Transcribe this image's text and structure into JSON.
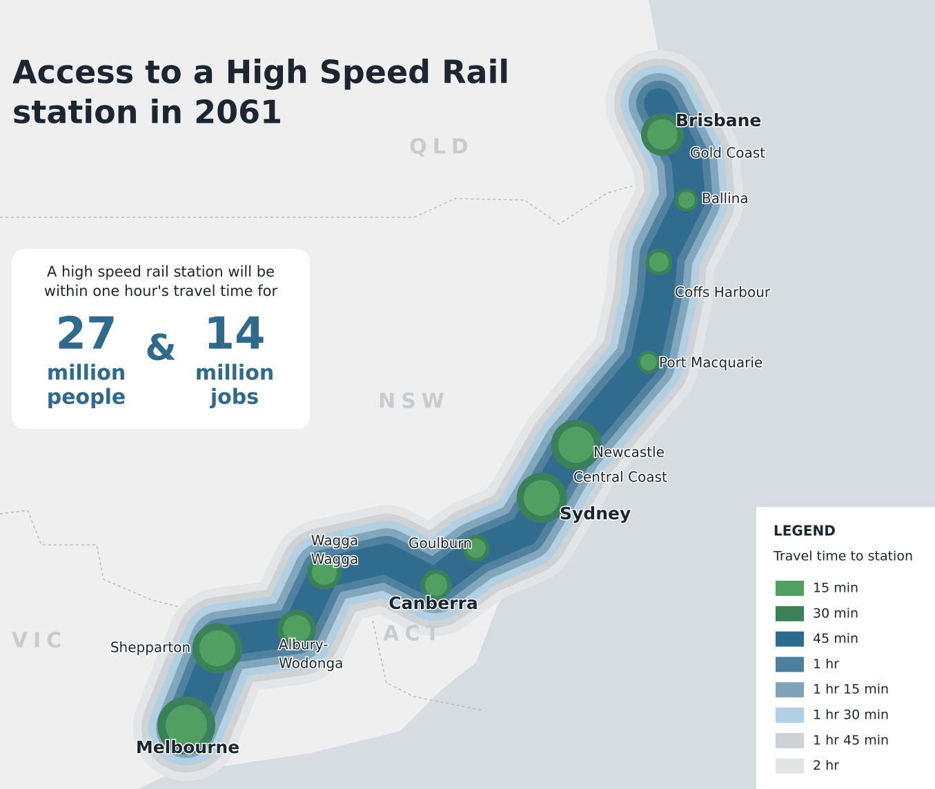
{
  "title": [
    "Access to a High Speed Rail",
    "station in 2061"
  ],
  "callout": {
    "intro": [
      "A high speed rail station will be",
      "within one hour's travel time for"
    ],
    "joiner": "&",
    "stats": [
      {
        "value": 27,
        "unit": "million",
        "label": "people"
      },
      {
        "value": 14,
        "unit": "million",
        "label": "jobs"
      }
    ]
  },
  "states": [
    "QLD",
    "NSW",
    "ACT",
    "VIC"
  ],
  "cities": [
    {
      "lines": [
        "Brisbane"
      ],
      "major": true
    },
    {
      "lines": [
        "Gold Coast"
      ],
      "major": false
    },
    {
      "lines": [
        "Ballina"
      ],
      "major": false
    },
    {
      "lines": [
        "Coffs Harbour"
      ],
      "major": false
    },
    {
      "lines": [
        "Port Macquarie"
      ],
      "major": false
    },
    {
      "lines": [
        "Newcastle"
      ],
      "major": false
    },
    {
      "lines": [
        "Central Coast"
      ],
      "major": false
    },
    {
      "lines": [
        "Sydney"
      ],
      "major": true
    },
    {
      "lines": [
        "Goulburn"
      ],
      "major": false
    },
    {
      "lines": [
        "Canberra"
      ],
      "major": true
    },
    {
      "lines": [
        "Wagga",
        "Wagga"
      ],
      "major": false
    },
    {
      "lines": [
        "Albury-",
        "Wodonga"
      ],
      "major": false
    },
    {
      "lines": [
        "Shepparton"
      ],
      "major": false
    },
    {
      "lines": [
        "Melbourne"
      ],
      "major": true
    }
  ],
  "legend": {
    "title": "LEGEND",
    "subtitle": "Travel time to station",
    "items": [
      {
        "label": "15 min",
        "color": "#52a061"
      },
      {
        "label": "30 min",
        "color": "#3a8058"
      },
      {
        "label": "45 min",
        "color": "#2e6a8d"
      },
      {
        "label": "1 hr",
        "color": "#4d7f9e"
      },
      {
        "label": "1 hr 15 min",
        "color": "#7fa4b9"
      },
      {
        "label": "1 hr 30 min",
        "color": "#b1d0e3"
      },
      {
        "label": "1 hr 45 min",
        "color": "#cfd2d5"
      },
      {
        "label": "2 hr",
        "color": "#e3e4e5"
      }
    ]
  }
}
